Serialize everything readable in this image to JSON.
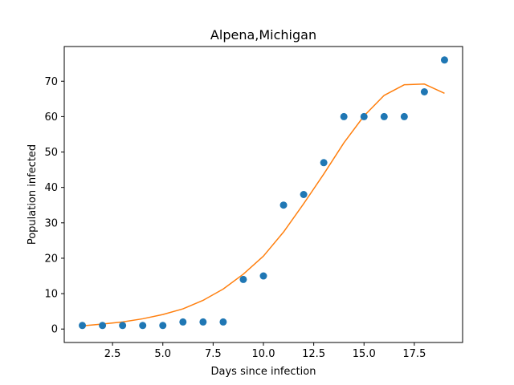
{
  "chart_data": {
    "type": "scatter",
    "title": "Alpena,Michigan",
    "xlabel": "Days since infection",
    "ylabel": "Population infected",
    "xlim": [
      0.1,
      19.9
    ],
    "ylim": [
      -3.8,
      79.8
    ],
    "xticks": [
      2.5,
      5.0,
      7.5,
      10.0,
      12.5,
      15.0,
      17.5
    ],
    "xtick_labels": [
      "2.5",
      "5.0",
      "7.5",
      "10.0",
      "12.5",
      "15.0",
      "17.5"
    ],
    "yticks": [
      0,
      10,
      20,
      30,
      40,
      50,
      60,
      70
    ],
    "ytick_labels": [
      "0",
      "10",
      "20",
      "30",
      "40",
      "50",
      "60",
      "70"
    ],
    "grid": false,
    "series": [
      {
        "type": "scatter",
        "color": "#1f77b4",
        "x": [
          1,
          2,
          3,
          4,
          5,
          6,
          7,
          8,
          9,
          10,
          11,
          12,
          13,
          14,
          15,
          16,
          17,
          18,
          19
        ],
        "y": [
          1,
          1,
          1,
          1,
          1,
          2,
          2,
          2,
          14,
          15,
          35,
          38,
          47,
          60,
          60,
          60,
          60,
          67,
          76
        ]
      },
      {
        "type": "line",
        "color": "#ff7f0e",
        "x": [
          1,
          2,
          3,
          4,
          5,
          6,
          7,
          8,
          9,
          10,
          11,
          12,
          13,
          14,
          15,
          16,
          17,
          18,
          19
        ],
        "y": [
          0.9,
          1.4,
          2.0,
          2.9,
          4.1,
          5.7,
          8.1,
          11.3,
          15.5,
          20.6,
          27.4,
          35.4,
          43.8,
          52.6,
          60.2,
          66.0,
          69.0,
          69.2,
          66.6
        ]
      }
    ]
  }
}
